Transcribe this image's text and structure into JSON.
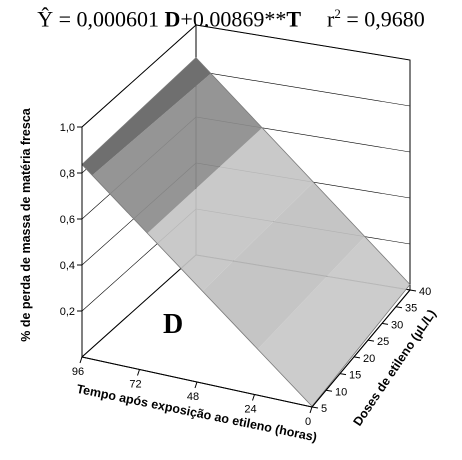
{
  "equation": {
    "lhs": "Ŷ = 0,000601 ",
    "var_d": "D",
    "mid": "+0,00869**",
    "var_t": "T",
    "r_label": "r",
    "r_exp": "2",
    "r_value": " = 0,9680"
  },
  "chart_data": {
    "type": "surface",
    "panel_label": "D",
    "zlabel": "% de perda de massa de matéria fresca",
    "xlabel": "Tempo após exposição ao etileno (horas)",
    "ylabel": "Doses de etileno (µL/L)",
    "x_ticks": [
      "96",
      "72",
      "48",
      "24",
      "0"
    ],
    "y_ticks": [
      "5",
      "10",
      "15",
      "20",
      "25",
      "30",
      "35",
      "40"
    ],
    "z_ticks": [
      "0,2",
      "0,4",
      "0,6",
      "0,8",
      "1,0"
    ],
    "xlim": [
      0,
      96
    ],
    "ylim": [
      5,
      40
    ],
    "zlim": [
      0,
      1.0
    ],
    "model": {
      "coef_d": 0.000601,
      "coef_t": 0.00869
    },
    "surface": {
      "x": [
        0,
        96
      ],
      "y": [
        5,
        40
      ],
      "z": [
        [
          0.003,
          0.024
        ],
        [
          0.837,
          0.858
        ]
      ]
    },
    "colors": {
      "surface": "#bdbdbd",
      "surface_dark": "#6f6f6f",
      "edge": "#7a7a7a"
    }
  }
}
